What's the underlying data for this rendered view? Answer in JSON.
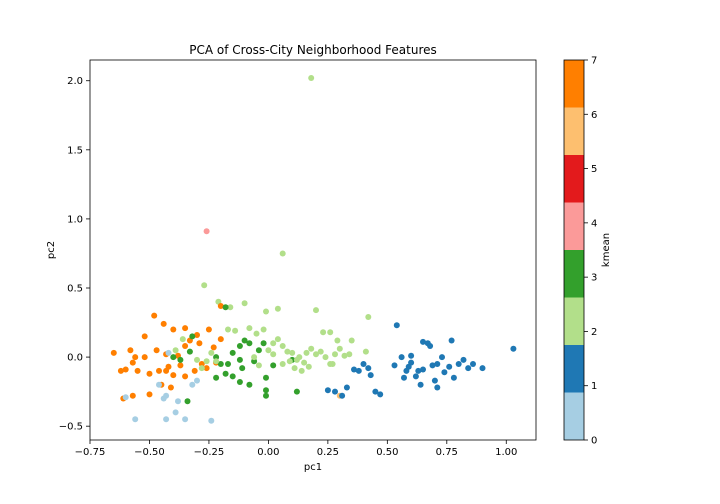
{
  "chart_data": {
    "type": "scatter",
    "title": "PCA of Cross-City Neighborhood Features",
    "xlabel": "pc1",
    "ylabel": "pc2",
    "xlim": [
      -0.75,
      1.125
    ],
    "ylim": [
      -0.6,
      2.15
    ],
    "xticks": [
      -0.75,
      -0.5,
      -0.25,
      0.0,
      0.25,
      0.5,
      0.75,
      1.0
    ],
    "xtick_labels": [
      "−0.75",
      "−0.50",
      "−0.25",
      "0.00",
      "0.25",
      "0.50",
      "0.75",
      "1.00"
    ],
    "yticks": [
      -0.5,
      0.0,
      0.5,
      1.0,
      1.5,
      2.0
    ],
    "ytick_labels": [
      "−0.5",
      "0.0",
      "0.5",
      "1.0",
      "1.5",
      "2.0"
    ],
    "grid": false,
    "colorbar": {
      "label": "kmean",
      "range": [
        0,
        7
      ],
      "ticks": [
        "0",
        "1",
        "2",
        "3",
        "4",
        "5",
        "6",
        "7"
      ],
      "colors": [
        "#a6cee3",
        "#1f78b4",
        "#b2df8a",
        "#33a02c",
        "#fb9a99",
        "#e31a1c",
        "#fdbf6f",
        "#ff7f00"
      ]
    },
    "points": [
      [
        0.18,
        2.02,
        2
      ],
      [
        0.06,
        0.75,
        2
      ],
      [
        -0.26,
        0.91,
        4
      ],
      [
        -0.27,
        0.52,
        2
      ],
      [
        -0.21,
        0.4,
        2
      ],
      [
        -0.16,
        0.36,
        2
      ],
      [
        -0.1,
        0.39,
        2
      ],
      [
        -0.01,
        0.33,
        2
      ],
      [
        0.04,
        0.35,
        2
      ],
      [
        0.2,
        0.34,
        2
      ],
      [
        0.42,
        0.29,
        2
      ],
      [
        -0.2,
        0.37,
        7
      ],
      [
        -0.18,
        0.36,
        3
      ],
      [
        -0.48,
        0.3,
        7
      ],
      [
        -0.44,
        0.24,
        7
      ],
      [
        -0.52,
        0.15,
        7
      ],
      [
        -0.4,
        0.2,
        7
      ],
      [
        -0.35,
        0.21,
        7
      ],
      [
        -0.3,
        0.16,
        7
      ],
      [
        -0.25,
        0.2,
        7
      ],
      [
        -0.2,
        0.13,
        7
      ],
      [
        -0.65,
        0.03,
        7
      ],
      [
        -0.58,
        0.05,
        7
      ],
      [
        -0.56,
        0.0,
        7
      ],
      [
        -0.52,
        0.0,
        7
      ],
      [
        -0.47,
        0.05,
        7
      ],
      [
        -0.43,
        0.02,
        7
      ],
      [
        -0.38,
        0.01,
        7
      ],
      [
        -0.35,
        0.08,
        7
      ],
      [
        -0.33,
        0.12,
        7
      ],
      [
        -0.29,
        0.1,
        7
      ],
      [
        -0.23,
        0.07,
        7
      ],
      [
        -0.62,
        -0.1,
        7
      ],
      [
        -0.6,
        -0.09,
        7
      ],
      [
        -0.57,
        -0.04,
        7
      ],
      [
        -0.55,
        -0.1,
        7
      ],
      [
        -0.5,
        -0.12,
        7
      ],
      [
        -0.46,
        -0.1,
        7
      ],
      [
        -0.42,
        -0.07,
        7
      ],
      [
        -0.4,
        -0.13,
        7
      ],
      [
        -0.37,
        -0.06,
        7
      ],
      [
        -0.35,
        -0.14,
        7
      ],
      [
        -0.31,
        -0.1,
        7
      ],
      [
        -0.28,
        -0.05,
        7
      ],
      [
        -0.26,
        -0.08,
        7
      ],
      [
        -0.22,
        -0.04,
        7
      ],
      [
        -0.61,
        -0.3,
        7
      ],
      [
        -0.57,
        -0.28,
        7
      ],
      [
        -0.5,
        -0.27,
        7
      ],
      [
        -0.45,
        -0.2,
        7
      ],
      [
        -0.41,
        -0.22,
        7
      ],
      [
        -0.43,
        -0.1,
        7
      ],
      [
        -0.42,
        0.03,
        0
      ],
      [
        -0.46,
        -0.2,
        0
      ],
      [
        -0.43,
        -0.28,
        0
      ],
      [
        -0.44,
        -0.3,
        0
      ],
      [
        -0.38,
        -0.32,
        0
      ],
      [
        -0.39,
        -0.4,
        0
      ],
      [
        -0.35,
        -0.45,
        0
      ],
      [
        -0.43,
        -0.45,
        0
      ],
      [
        -0.56,
        -0.45,
        0
      ],
      [
        -0.24,
        -0.46,
        0
      ],
      [
        -0.6,
        -0.29,
        0
      ],
      [
        -0.32,
        -0.2,
        0
      ],
      [
        -0.3,
        -0.17,
        0
      ],
      [
        -0.4,
        0.0,
        3
      ],
      [
        -0.37,
        -0.02,
        3
      ],
      [
        -0.33,
        0.04,
        3
      ],
      [
        -0.32,
        0.15,
        3
      ],
      [
        -0.22,
        0.0,
        3
      ],
      [
        -0.2,
        -0.05,
        3
      ],
      [
        -0.17,
        -0.05,
        3
      ],
      [
        -0.15,
        0.03,
        3
      ],
      [
        -0.12,
        0.08,
        3
      ],
      [
        -0.11,
        -0.08,
        3
      ],
      [
        -0.1,
        0.12,
        3
      ],
      [
        -0.08,
        0.1,
        3
      ],
      [
        -0.06,
        -0.03,
        3
      ],
      [
        -0.04,
        0.05,
        3
      ],
      [
        -0.02,
        0.1,
        3
      ],
      [
        -0.01,
        -0.15,
        3
      ],
      [
        0.02,
        -0.06,
        3
      ],
      [
        -0.22,
        -0.15,
        3
      ],
      [
        -0.18,
        -0.12,
        3
      ],
      [
        -0.15,
        -0.14,
        3
      ],
      [
        -0.12,
        -0.18,
        3
      ],
      [
        -0.08,
        -0.2,
        3
      ],
      [
        -0.01,
        -0.24,
        3
      ],
      [
        -0.01,
        -0.28,
        3
      ],
      [
        0.12,
        -0.25,
        3
      ],
      [
        0.1,
        -0.02,
        3
      ],
      [
        -0.34,
        -0.32,
        3
      ],
      [
        -0.12,
        -0.02,
        3
      ],
      [
        -0.39,
        0.05,
        2
      ],
      [
        -0.36,
        0.13,
        2
      ],
      [
        -0.3,
        -0.02,
        2
      ],
      [
        -0.26,
        -0.03,
        2
      ],
      [
        -0.24,
        0.03,
        2
      ],
      [
        -0.22,
        -0.03,
        2
      ],
      [
        -0.17,
        0.2,
        2
      ],
      [
        -0.14,
        0.19,
        2
      ],
      [
        -0.08,
        0.21,
        2
      ],
      [
        -0.05,
        0.17,
        2
      ],
      [
        -0.02,
        0.2,
        2
      ],
      [
        0.0,
        0.05,
        2
      ],
      [
        0.02,
        0.1,
        2
      ],
      [
        0.04,
        0.13,
        2
      ],
      [
        0.06,
        0.08,
        2
      ],
      [
        0.08,
        0.04,
        2
      ],
      [
        0.09,
        -0.03,
        2
      ],
      [
        0.1,
        0.03,
        2
      ],
      [
        0.12,
        -0.02,
        2
      ],
      [
        0.13,
        0.0,
        2
      ],
      [
        0.15,
        -0.04,
        2
      ],
      [
        0.16,
        0.03,
        2
      ],
      [
        0.17,
        -0.07,
        2
      ],
      [
        0.18,
        0.06,
        2
      ],
      [
        0.2,
        0.02,
        2
      ],
      [
        0.22,
        0.04,
        2
      ],
      [
        0.24,
        0.0,
        2
      ],
      [
        0.26,
        -0.05,
        2
      ],
      [
        0.28,
        0.02,
        2
      ],
      [
        0.3,
        0.06,
        2
      ],
      [
        0.32,
        0.01,
        2
      ],
      [
        0.34,
        0.02,
        2
      ],
      [
        0.23,
        0.18,
        2
      ],
      [
        0.26,
        0.18,
        2
      ],
      [
        0.29,
        0.12,
        2
      ],
      [
        0.35,
        0.12,
        2
      ],
      [
        0.41,
        0.04,
        2
      ],
      [
        0.02,
        0.02,
        2
      ],
      [
        0.06,
        -0.05,
        2
      ],
      [
        0.11,
        -0.08,
        2
      ],
      [
        0.14,
        -0.1,
        2
      ],
      [
        0.27,
        -0.05,
        2
      ],
      [
        -0.04,
        -0.06,
        2
      ],
      [
        -0.06,
        0.0,
        2
      ],
      [
        -0.28,
        -0.08,
        2
      ],
      [
        0.3,
        -0.28,
        6
      ],
      [
        0.28,
        -0.25,
        1
      ],
      [
        0.31,
        -0.28,
        1
      ],
      [
        0.25,
        -0.24,
        1
      ],
      [
        0.33,
        -0.22,
        1
      ],
      [
        0.36,
        -0.09,
        1
      ],
      [
        0.38,
        -0.1,
        1
      ],
      [
        0.4,
        -0.05,
        1
      ],
      [
        0.42,
        -0.08,
        1
      ],
      [
        0.43,
        -0.13,
        1
      ],
      [
        0.45,
        -0.25,
        1
      ],
      [
        0.47,
        -0.27,
        1
      ],
      [
        0.53,
        -0.06,
        1
      ],
      [
        0.54,
        0.23,
        1
      ],
      [
        0.56,
        0.0,
        1
      ],
      [
        0.57,
        -0.15,
        1
      ],
      [
        0.58,
        -0.1,
        1
      ],
      [
        0.59,
        -0.07,
        1
      ],
      [
        0.6,
        -0.04,
        1
      ],
      [
        0.6,
        0.01,
        1
      ],
      [
        0.62,
        -0.14,
        1
      ],
      [
        0.63,
        -0.1,
        1
      ],
      [
        0.64,
        -0.2,
        1
      ],
      [
        0.65,
        0.11,
        1
      ],
      [
        0.67,
        0.1,
        1
      ],
      [
        0.68,
        0.08,
        1
      ],
      [
        0.69,
        -0.06,
        1
      ],
      [
        0.7,
        -0.17,
        1
      ],
      [
        0.71,
        -0.22,
        1
      ],
      [
        0.71,
        -0.05,
        1
      ],
      [
        0.73,
        0.0,
        1
      ],
      [
        0.74,
        -0.11,
        1
      ],
      [
        0.76,
        -0.07,
        1
      ],
      [
        0.77,
        0.12,
        1
      ],
      [
        0.78,
        -0.15,
        1
      ],
      [
        0.8,
        -0.05,
        1
      ],
      [
        0.82,
        -0.02,
        1
      ],
      [
        0.84,
        -0.08,
        1
      ],
      [
        0.86,
        -0.05,
        1
      ],
      [
        0.9,
        -0.08,
        1
      ],
      [
        1.03,
        0.06,
        1
      ],
      [
        0.65,
        -0.09,
        1
      ]
    ]
  }
}
